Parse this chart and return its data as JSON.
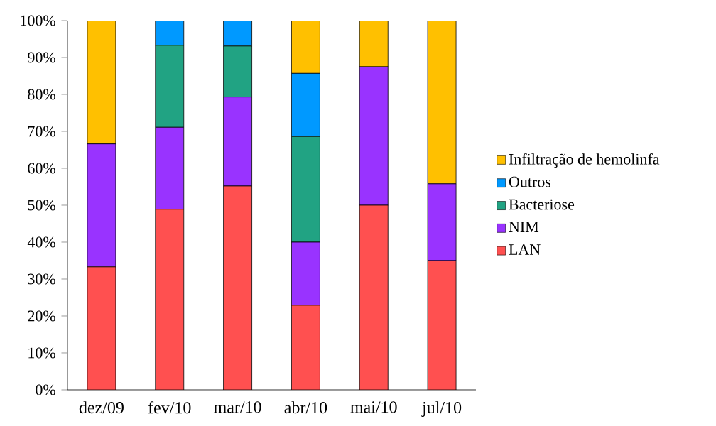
{
  "chart_data": {
    "type": "bar",
    "stacked": true,
    "categories": [
      "dez/09",
      "fev/10",
      "mar/10",
      "abr/10",
      "mai/10",
      "jul/10"
    ],
    "series": [
      {
        "name": "LAN",
        "color": "#ff5050",
        "values": [
          33.3,
          48.9,
          55.2,
          22.9,
          50.0,
          35.0
        ]
      },
      {
        "name": "NIM",
        "color": "#9933ff",
        "values": [
          33.3,
          22.2,
          24.1,
          17.1,
          37.5,
          20.8
        ]
      },
      {
        "name": "Bacteriose",
        "color": "#21a383",
        "values": [
          0,
          22.2,
          13.8,
          28.6,
          0,
          0
        ]
      },
      {
        "name": "Outros",
        "color": "#0099ff",
        "values": [
          0,
          6.7,
          6.9,
          17.1,
          0,
          0
        ]
      },
      {
        "name": "Infiltração de hemolinfa",
        "color": "#ffc000",
        "values": [
          33.4,
          0,
          0,
          14.3,
          12.5,
          44.2
        ]
      }
    ],
    "ylim": [
      0,
      100
    ],
    "yticks": [
      {
        "value": 0,
        "label": "0%"
      },
      {
        "value": 10,
        "label": "10%"
      },
      {
        "value": 20,
        "label": "20%"
      },
      {
        "value": 30,
        "label": "30%"
      },
      {
        "value": 40,
        "label": "40%"
      },
      {
        "value": 50,
        "label": "50%"
      },
      {
        "value": 60,
        "label": "60%"
      },
      {
        "value": 70,
        "label": "70%"
      },
      {
        "value": 80,
        "label": "80%"
      },
      {
        "value": 90,
        "label": "90%"
      },
      {
        "value": 100,
        "label": "100%"
      }
    ],
    "grid": false,
    "legend": "right"
  }
}
